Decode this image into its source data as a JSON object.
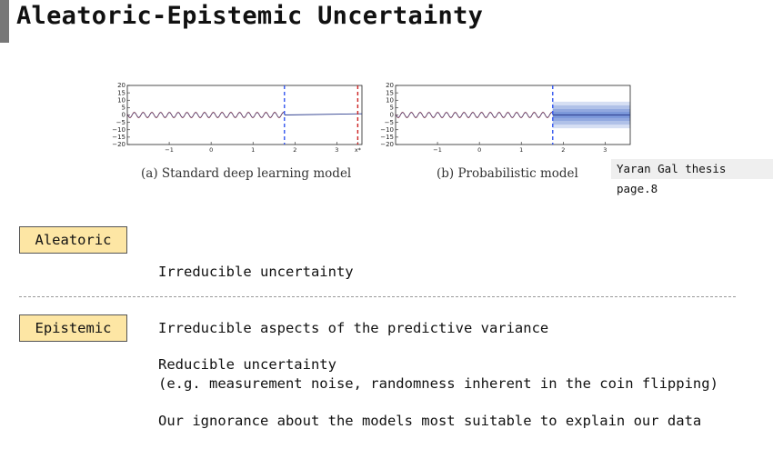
{
  "title": "Aleatoric-Epistemic Uncertainty",
  "figure": {
    "caption_a": "(a) Standard deep learning model",
    "caption_b": "(b) Probabilistic model",
    "source_note": "Yaran Gal thesis page.8",
    "y_ticks": [
      "20",
      "15",
      "10",
      "5",
      "0",
      "−5",
      "−10",
      "−15",
      "−20"
    ],
    "x_ticks_a": [
      "−1",
      "0",
      "1",
      "2",
      "3",
      "x*"
    ],
    "x_ticks_b": [
      "−1",
      "0",
      "1",
      "2",
      "3"
    ],
    "colors": {
      "data": "#8b1a1a",
      "fit": "#2f3f8f",
      "boundary": "#3355ee",
      "query": "#cc2222",
      "band": "#5b7fd1"
    }
  },
  "aleatoric": {
    "label": "Aleatoric",
    "lines": [
      "Irreducible uncertainty",
      "Irreducible aspects of the predictive variance",
      "(e.g. measurement noise, randomness inherent in the coin flipping)"
    ]
  },
  "epistemic": {
    "label": "Epistemic",
    "lines": [
      "Reducible uncertainty",
      "Our ignorance about the models most suitable to explain our data"
    ]
  }
}
